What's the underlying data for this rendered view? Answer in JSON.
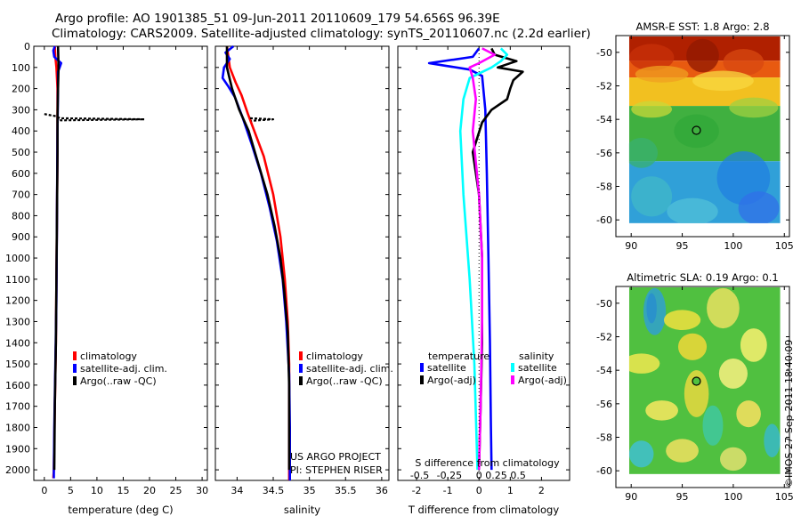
{
  "header": {
    "line1": "Argo profile: AO 1901385_51 09-Jun-2011 20110609_179 54.656S 96.39E",
    "line2": "Climatology: CARS2009. Satellite-adjusted climatology: synTS_20110607.nc (2.2d earlier)"
  },
  "credits": {
    "project": "US ARGO PROJECT",
    "pi": "PI: STEPHEN RISER",
    "stamp": "©IMOS 27-Sep-2011 18:40:09"
  },
  "colors": {
    "red": "#ff0000",
    "blue": "#0000ff",
    "black": "#000000",
    "cyan": "#00ffff",
    "magenta": "#ff00ff",
    "dot_marker": "#000000"
  },
  "chart_data": [
    {
      "type": "line",
      "id": "temperature",
      "xlabel": "temperature (deg C)",
      "ylabel": "",
      "xlim": [
        -2,
        31
      ],
      "ylim": [
        0,
        2050
      ],
      "xticks": [
        0,
        5,
        10,
        15,
        20,
        25,
        30
      ],
      "xtick_labels": [
        "0",
        "5",
        "10",
        "15",
        "20",
        "25",
        "30"
      ],
      "yticks": [
        0,
        100,
        200,
        300,
        400,
        500,
        600,
        700,
        800,
        900,
        1000,
        1100,
        1200,
        1300,
        1400,
        1500,
        1600,
        1700,
        1800,
        1900,
        2000
      ],
      "ytick_labels": [
        "0",
        "100",
        "200",
        "300",
        "400",
        "500",
        "600",
        "700",
        "800",
        "900",
        "1000",
        "1100",
        "1200",
        "1300",
        "1400",
        "1500",
        "1600",
        "1700",
        "1800",
        "1900",
        "2000"
      ],
      "legend": [
        "climatology",
        "satellite-adj. clim.",
        "Argo(..raw -QC)"
      ],
      "series": [
        {
          "name": "climatology",
          "color": "red",
          "points": [
            [
              2.0,
              0
            ],
            [
              2.1,
              50
            ],
            [
              2.3,
              100
            ],
            [
              2.4,
              150
            ],
            [
              2.5,
              200
            ],
            [
              2.5,
              300
            ],
            [
              2.5,
              500
            ],
            [
              2.4,
              800
            ],
            [
              2.3,
              1100
            ],
            [
              2.2,
              1400
            ],
            [
              2.0,
              1700
            ],
            [
              1.8,
              2000
            ],
            [
              1.7,
              2040
            ]
          ]
        },
        {
          "name": "satellite-adj. clim.",
          "color": "blue",
          "points": [
            [
              2.0,
              0
            ],
            [
              1.7,
              20
            ],
            [
              1.9,
              50
            ],
            [
              3.2,
              80
            ],
            [
              2.9,
              100
            ],
            [
              2.6,
              120
            ],
            [
              2.6,
              200
            ],
            [
              2.5,
              400
            ],
            [
              2.4,
              800
            ],
            [
              2.3,
              1200
            ],
            [
              2.1,
              1500
            ],
            [
              1.9,
              1800
            ],
            [
              1.8,
              2000
            ],
            [
              1.8,
              2040
            ]
          ]
        },
        {
          "name": "Argo(..raw -QC)",
          "color": "black",
          "points": [
            [
              2.6,
              0
            ],
            [
              2.7,
              100
            ],
            [
              2.6,
              200
            ],
            [
              2.5,
              330
            ],
            [
              2.5,
              500
            ],
            [
              2.4,
              800
            ],
            [
              2.3,
              1100
            ],
            [
              2.2,
              1400
            ],
            [
              2.0,
              1700
            ],
            [
              1.9,
              2000
            ]
          ]
        },
        {
          "name": "Argo spikes",
          "color": "black",
          "style": "dash",
          "points": [
            [
              0,
              320
            ],
            [
              2.2,
              330
            ],
            [
              3,
              340
            ],
            [
              19,
              345
            ],
            [
              3,
              350
            ],
            [
              2.4,
              360
            ]
          ]
        }
      ]
    },
    {
      "type": "line",
      "id": "salinity",
      "xlabel": "salinity",
      "xlim": [
        33.7,
        36.1
      ],
      "ylim": [
        0,
        2050
      ],
      "xticks": [
        34,
        34.5,
        35,
        35.5,
        36
      ],
      "xtick_labels": [
        "34",
        "34.5",
        "35",
        "35.5",
        "36"
      ],
      "legend": [
        "climatology",
        "satellite-adj. clim.",
        "Argo(..raw -QC)"
      ],
      "series": [
        {
          "name": "climatology",
          "color": "red",
          "points": [
            [
              33.86,
              0
            ],
            [
              33.9,
              100
            ],
            [
              33.98,
              170
            ],
            [
              34.06,
              230
            ],
            [
              34.15,
              320
            ],
            [
              34.26,
              420
            ],
            [
              34.37,
              520
            ],
            [
              34.5,
              700
            ],
            [
              34.6,
              900
            ],
            [
              34.66,
              1100
            ],
            [
              34.7,
              1300
            ],
            [
              34.72,
              1500
            ],
            [
              34.72,
              1800
            ],
            [
              34.72,
              2050
            ]
          ]
        },
        {
          "name": "satellite-adj. clim.",
          "color": "blue",
          "points": [
            [
              33.95,
              0
            ],
            [
              33.84,
              30
            ],
            [
              33.9,
              60
            ],
            [
              33.82,
              100
            ],
            [
              33.8,
              150
            ],
            [
              33.88,
              190
            ],
            [
              33.97,
              240
            ],
            [
              34.08,
              340
            ],
            [
              34.2,
              460
            ],
            [
              34.33,
              600
            ],
            [
              34.45,
              760
            ],
            [
              34.55,
              920
            ],
            [
              34.63,
              1100
            ],
            [
              34.68,
              1300
            ],
            [
              34.72,
              1550
            ],
            [
              34.73,
              1800
            ],
            [
              34.73,
              2050
            ]
          ]
        },
        {
          "name": "Argo(..raw -QC)",
          "color": "black",
          "points": [
            [
              33.86,
              0
            ],
            [
              33.86,
              100
            ],
            [
              33.93,
              200
            ],
            [
              34.03,
              300
            ],
            [
              34.16,
              400
            ],
            [
              34.29,
              550
            ],
            [
              34.42,
              700
            ],
            [
              34.52,
              850
            ],
            [
              34.6,
              1000
            ],
            [
              34.65,
              1150
            ],
            [
              34.7,
              1350
            ],
            [
              34.72,
              1600
            ],
            [
              34.72,
              2000
            ]
          ]
        },
        {
          "name": "Argo spikes",
          "color": "black",
          "style": "dash",
          "points": [
            [
              34.18,
              340
            ],
            [
              34.5,
              345
            ],
            [
              34.2,
              352
            ]
          ]
        }
      ]
    },
    {
      "type": "line",
      "id": "difference",
      "xlabel": "T difference from climatology",
      "xlabel_top": "S difference from climatology",
      "xlim": [
        -2.6,
        2.9
      ],
      "ylim": [
        0,
        2050
      ],
      "xticks": [
        -2,
        -1,
        0,
        1,
        2
      ],
      "xtick_labels": [
        "-2",
        "-1",
        "0",
        "1",
        "2"
      ],
      "s_tick_labels": [
        "-0.5",
        "-0.25",
        "0",
        "0.25",
        "0.5"
      ],
      "legend_titles": [
        "temperature",
        "salinity"
      ],
      "legend": [
        {
          "group": "temperature",
          "label": "satellite",
          "color": "blue"
        },
        {
          "group": "temperature",
          "label": "Argo(-adj)",
          "color": "black"
        },
        {
          "group": "salinity",
          "label": "satellite",
          "color": "cyan"
        },
        {
          "group": "salinity",
          "label": "Argo(-adj)",
          "color": "magenta"
        }
      ],
      "series": [
        {
          "name": "T satellite",
          "color": "blue",
          "points": [
            [
              0.0,
              10
            ],
            [
              -0.2,
              50
            ],
            [
              -1.6,
              80
            ],
            [
              -0.3,
              110
            ],
            [
              0.1,
              140
            ],
            [
              0.2,
              300
            ],
            [
              0.25,
              600
            ],
            [
              0.3,
              1000
            ],
            [
              0.35,
              1400
            ],
            [
              0.38,
              1800
            ],
            [
              0.4,
              2000
            ]
          ]
        },
        {
          "name": "T Argo(-adj)",
          "color": "black",
          "points": [
            [
              0.4,
              10
            ],
            [
              0.5,
              40
            ],
            [
              1.2,
              70
            ],
            [
              0.6,
              100
            ],
            [
              1.4,
              120
            ],
            [
              1.1,
              160
            ],
            [
              1.0,
              200
            ],
            [
              0.9,
              250
            ],
            [
              0.4,
              300
            ],
            [
              0.1,
              360
            ],
            [
              -0.2,
              500
            ],
            [
              0,
              700
            ],
            [
              0.1,
              1000
            ],
            [
              0.1,
              1400
            ],
            [
              0.05,
              1700
            ],
            [
              0,
              2000
            ]
          ]
        },
        {
          "name": "S satellite",
          "color": "cyan",
          "points": [
            [
              0.7,
              10
            ],
            [
              0.9,
              40
            ],
            [
              0.7,
              70
            ],
            [
              0.4,
              100
            ],
            [
              -0.3,
              150
            ],
            [
              -0.5,
              250
            ],
            [
              -0.6,
              400
            ],
            [
              -0.5,
              700
            ],
            [
              -0.3,
              1100
            ],
            [
              -0.15,
              1500
            ],
            [
              -0.05,
              2000
            ]
          ]
        },
        {
          "name": "S Argo(-adj)",
          "color": "magenta",
          "points": [
            [
              0.1,
              10
            ],
            [
              0.5,
              40
            ],
            [
              0,
              80
            ],
            [
              -0.3,
              100
            ],
            [
              -0.2,
              150
            ],
            [
              -0.1,
              250
            ],
            [
              -0.2,
              400
            ],
            [
              0,
              700
            ],
            [
              0.1,
              1000
            ],
            [
              0.1,
              1300
            ],
            [
              0.05,
              1700
            ],
            [
              0,
              2000
            ]
          ]
        }
      ]
    },
    {
      "type": "heatmap",
      "id": "sst",
      "title": "AMSR-E SST: 1.8 Argo: 2.8",
      "xlim": [
        88.5,
        105.5
      ],
      "ylim": [
        -61,
        -49
      ],
      "xticks": [
        90,
        95,
        100,
        105
      ],
      "xtick_labels": [
        "90",
        "95",
        "100",
        "105"
      ],
      "yticks": [
        -50,
        -52,
        -54,
        -56,
        -58,
        -60
      ],
      "ytick_labels": [
        "-50",
        "-52",
        "-54",
        "-56",
        "-58",
        "-60"
      ],
      "marker": {
        "lon": 96.39,
        "lat": -54.656
      },
      "bands": [
        {
          "lat_from": -49,
          "lat_to": -50.5,
          "color": "#b02000"
        },
        {
          "lat_from": -50.5,
          "lat_to": -51.5,
          "color": "#e85a10"
        },
        {
          "lat_from": -51.5,
          "lat_to": -53.2,
          "color": "#f2c020"
        },
        {
          "lat_from": -53.2,
          "lat_to": -56.5,
          "color": "#40b040"
        },
        {
          "lat_from": -56.5,
          "lat_to": -60.2,
          "color": "#30a0d8"
        }
      ]
    },
    {
      "type": "heatmap",
      "id": "sla",
      "title": "Altimetric SLA: 0.19 Argo: 0.1",
      "xlim": [
        88.5,
        105.5
      ],
      "ylim": [
        -61,
        -49
      ],
      "xticks": [
        90,
        95,
        100,
        105
      ],
      "xtick_labels": [
        "90",
        "95",
        "100",
        "105"
      ],
      "yticks": [
        -50,
        -52,
        -54,
        -56,
        -58,
        -60
      ],
      "ytick_labels": [
        "-50",
        "-52",
        "-54",
        "-56",
        "-58",
        "-60"
      ],
      "marker": {
        "lon": 96.39,
        "lat": -54.656
      },
      "base_color": "#50c040"
    }
  ]
}
